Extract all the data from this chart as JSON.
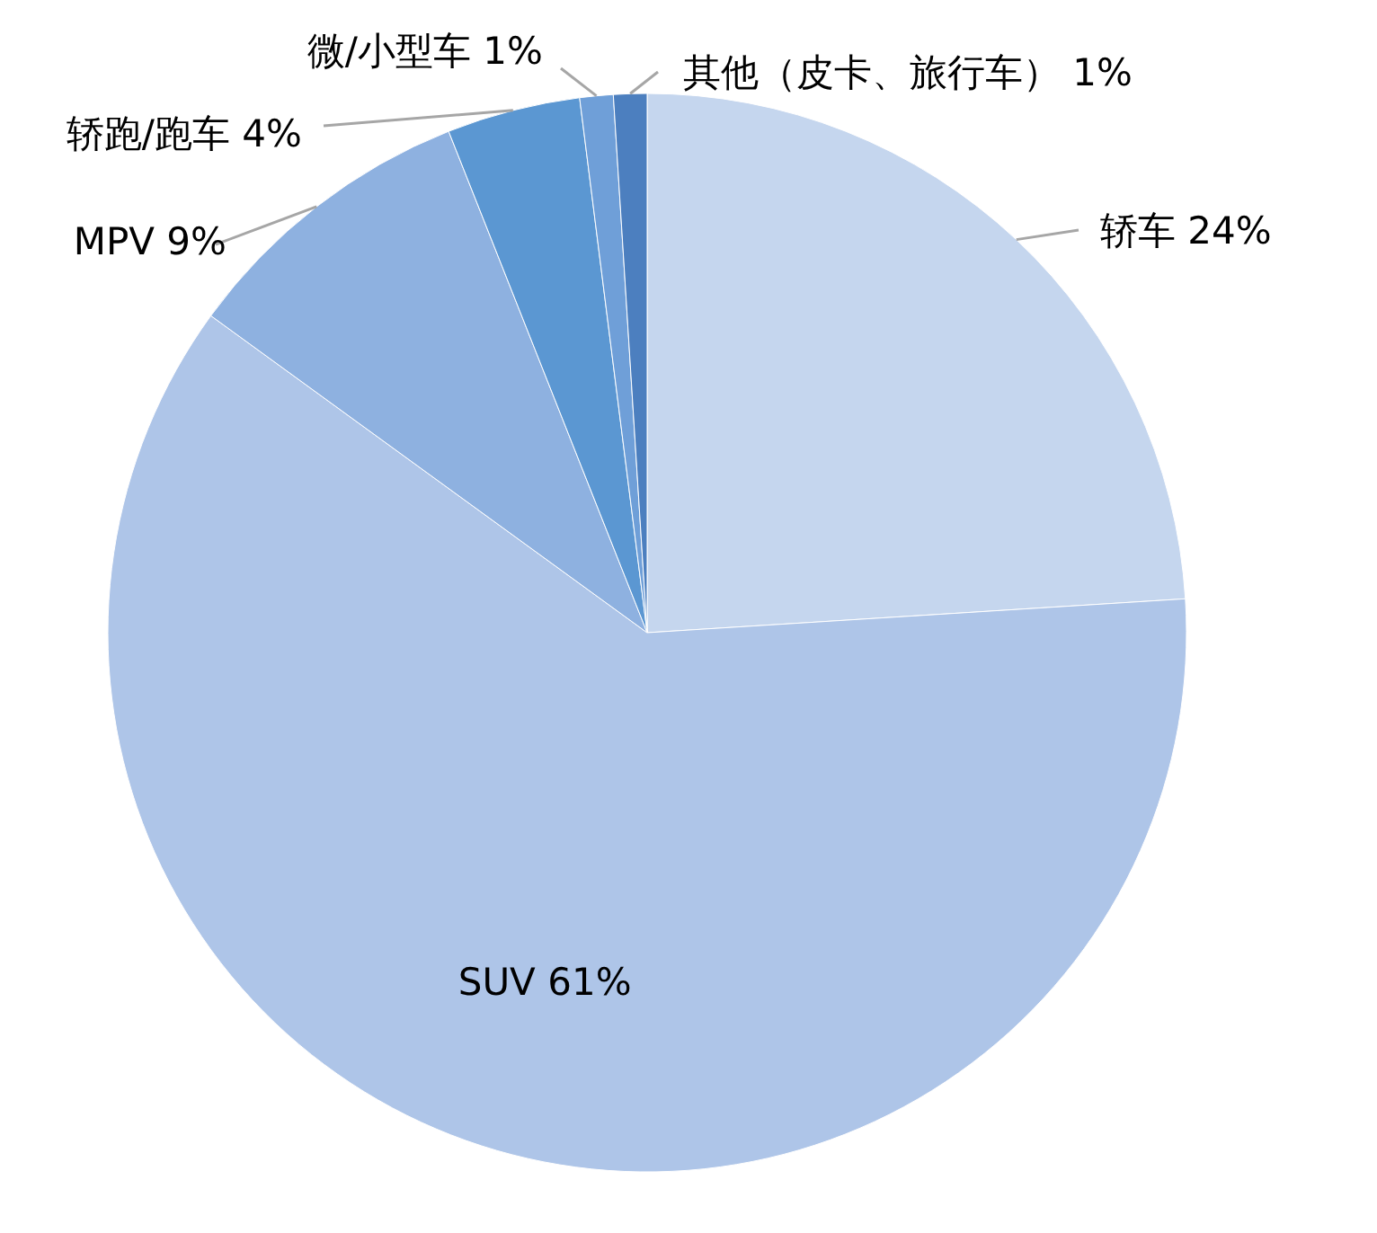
{
  "chart_data": {
    "type": "pie",
    "categories": [
      "轿车",
      "SUV",
      "MPV",
      "轿跑/跑车",
      "微/小型车",
      "其他（皮卡、旅行车）"
    ],
    "values": [
      24,
      61,
      9,
      4,
      1,
      1
    ],
    "value_labels": [
      "24%",
      "61%",
      "9%",
      "4%",
      "1%",
      "1%"
    ],
    "colors": [
      "#c5d6ee",
      "#aec5e8",
      "#8eb1e0",
      "#5b97d2",
      "#6f9fd8",
      "#4c7fbf"
    ]
  }
}
